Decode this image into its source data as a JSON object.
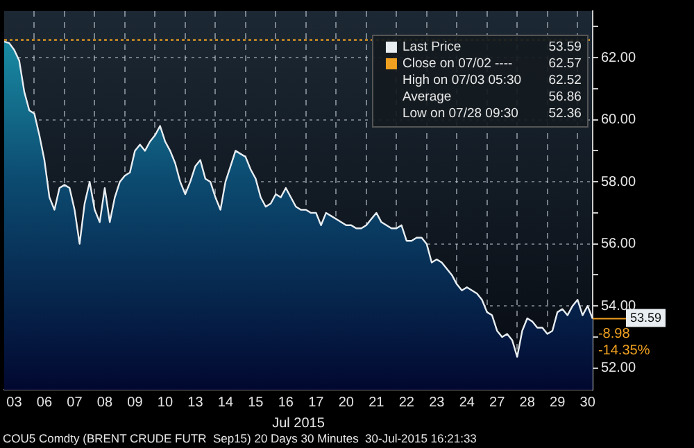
{
  "chart_data": {
    "type": "area",
    "xlabel": "Jul 2015",
    "categories": [
      null,
      null,
      "03",
      null,
      null,
      null,
      null,
      null,
      "06",
      null,
      null,
      null,
      null,
      null,
      "07",
      null,
      null,
      null,
      null,
      null,
      "08",
      null,
      null,
      null,
      null,
      null,
      "09",
      null,
      null,
      null,
      null,
      null,
      "10",
      null,
      null,
      null,
      null,
      null,
      "13",
      null,
      null,
      null,
      null,
      null,
      "14",
      null,
      null,
      null,
      null,
      null,
      "15",
      null,
      null,
      null,
      null,
      null,
      "16",
      null,
      null,
      null,
      null,
      null,
      "17",
      null,
      null,
      null,
      null,
      null,
      "20",
      null,
      null,
      null,
      null,
      null,
      "21",
      null,
      null,
      null,
      null,
      null,
      "22",
      null,
      null,
      null,
      null,
      null,
      "23",
      null,
      null,
      null,
      null,
      null,
      "24",
      null,
      null,
      null,
      null,
      null,
      "27",
      null,
      null,
      null,
      null,
      null,
      "28",
      null,
      null,
      null,
      null,
      null,
      "29",
      null,
      null,
      null,
      null,
      null,
      "30",
      null
    ],
    "series": [
      {
        "name": "Last Price",
        "color": "#e8eef2",
        "values": [
          62.52,
          62.47,
          62.25,
          61.9,
          60.9,
          60.3,
          60.2,
          59.5,
          58.7,
          57.5,
          57.1,
          57.8,
          57.9,
          57.8,
          57.1,
          56.0,
          57.3,
          58.0,
          57.1,
          56.7,
          57.8,
          56.7,
          57.5,
          58.0,
          58.2,
          58.3,
          59.0,
          59.2,
          59.0,
          59.3,
          59.5,
          59.8,
          59.3,
          59.0,
          58.6,
          58.0,
          57.6,
          58.0,
          58.5,
          58.7,
          58.1,
          58.0,
          57.5,
          57.1,
          58.0,
          58.5,
          59.0,
          58.9,
          58.8,
          58.4,
          58.1,
          57.5,
          57.2,
          57.3,
          57.6,
          57.5,
          57.8,
          57.5,
          57.2,
          57.1,
          57.1,
          57.0,
          57.0,
          56.6,
          57.0,
          56.9,
          56.8,
          56.7,
          56.6,
          56.6,
          56.5,
          56.5,
          56.6,
          56.8,
          57.0,
          56.7,
          56.6,
          56.5,
          56.5,
          56.6,
          56.1,
          56.1,
          56.2,
          56.2,
          56.0,
          55.4,
          55.5,
          55.4,
          55.2,
          55.0,
          54.7,
          54.5,
          54.6,
          54.5,
          54.4,
          54.2,
          53.8,
          53.7,
          53.2,
          53.0,
          53.1,
          52.9,
          52.36,
          53.2,
          53.6,
          53.5,
          53.3,
          53.3,
          53.1,
          53.2,
          53.8,
          53.9,
          53.7,
          54.0,
          54.2,
          53.7,
          54.0,
          53.59
        ]
      }
    ],
    "ylim": [
      51.3,
      63.5
    ],
    "yticks": [
      {
        "value": 52,
        "label": "52.00"
      },
      {
        "value": 53,
        "label": null
      },
      {
        "value": 54,
        "label": "54.00"
      },
      {
        "value": 55,
        "label": null
      },
      {
        "value": 56,
        "label": "56.00"
      },
      {
        "value": 57,
        "label": null
      },
      {
        "value": 58,
        "label": "58.00"
      },
      {
        "value": 59,
        "label": null
      },
      {
        "value": 60,
        "label": "60.00"
      },
      {
        "value": 61,
        "label": null
      },
      {
        "value": 62,
        "label": "62.00"
      },
      {
        "value": 63,
        "label": null
      }
    ],
    "ref_lines": [
      {
        "axis": "y",
        "value": 62.57,
        "label": "Close on 07/02 ----",
        "color": "#f0a020",
        "line_style": "dotted"
      }
    ],
    "annotations": [
      "53.59",
      "62.57",
      "High on 07/03 05:30 62.52",
      "Average 56.86",
      "Low on 07/28 09:30 52.36",
      "-8.98",
      "-14.35%",
      "COU5 Comdty (BRENT CRUDE FUTR  Sep15) 20 Days 30 Minutes  30-Jul-2015 16:21:33"
    ],
    "grid": true,
    "legend": "top right"
  }
}
